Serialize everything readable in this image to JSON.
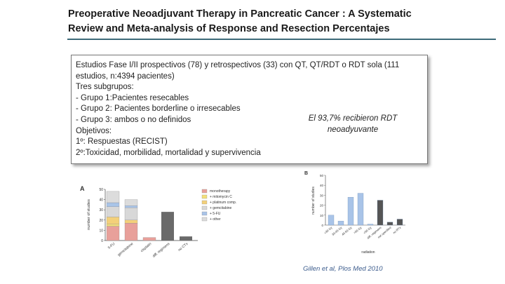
{
  "title_line1": "Preoperative Neoadjuvant Therapy in Pancreatic Cancer : A Systematic",
  "title_line2": "Review and Meta-analysis of Response and Resection Percentajes",
  "box": {
    "line1": "Estudios Fase I/II  prospectivos (78) y retrospectivos (33) con QT, QT/RDT o RDT sola (111",
    "line2": "estudios, n:4394 pacientes)",
    "subgroups_heading": "Tres subgrupos:",
    "groups": [
      "-   Grupo 1:Pacientes resecables",
      "-   Grupo 2: Pacientes borderline o irresecables",
      "-   Grupo 3: ambos o no definidos"
    ],
    "objectives_heading": "Objetivos:",
    "objectives": [
      "1º: Respuestas (RECIST)",
      "2º:Toxicidad, morbilidad, mortalidad y supervivencia"
    ]
  },
  "callout_line1": "El 93,7% recibieron RDT",
  "callout_line2": "neoadyuvante",
  "citation": "Gillen et al, Plos Med 2010",
  "chart_data": [
    {
      "type": "bar",
      "panel_label": "A",
      "ylabel": "number of studies",
      "ylim": [
        0,
        50
      ],
      "yticks": [
        "0",
        "10",
        "20",
        "30",
        "40",
        "50"
      ],
      "categories": [
        "5-FU",
        "gemcitabine",
        "cisplatin",
        "diff. regimens",
        "no CTx"
      ],
      "series": [
        {
          "name": "monotherapy",
          "values": [
            14,
            17,
            3,
            0,
            0
          ]
        },
        {
          "name": "+ mitomycin C",
          "values": [
            2,
            0,
            0,
            0,
            0
          ]
        },
        {
          "name": "+ platinum comp.",
          "values": [
            7,
            3,
            0,
            0,
            0
          ]
        },
        {
          "name": "+ gemcitabine",
          "values": [
            10,
            12,
            0,
            0,
            0
          ]
        },
        {
          "name": "+ 5-FU",
          "values": [
            4,
            2,
            0,
            0,
            0
          ]
        },
        {
          "name": "+ other",
          "values": [
            11,
            6,
            0,
            0,
            0
          ]
        }
      ],
      "totals_bars": [
        {
          "category": "diff. regimens",
          "value": 28
        },
        {
          "category": "no CTx",
          "value": 4
        }
      ],
      "legend_placement": "right",
      "colors": [
        "#e8a09a",
        "#f3e07a",
        "#f3d07a",
        "#d8d8d8",
        "#a9c4e8",
        "#dcdcdc"
      ]
    },
    {
      "type": "bar",
      "panel_label": "B",
      "ylabel": "number of studies",
      "xlabel": "radiation",
      "ylim": [
        0,
        50
      ],
      "yticks": [
        "0",
        "10",
        "20",
        "30",
        "40",
        "50"
      ],
      "categories": [
        "<30 Gy",
        "30-45 Gy",
        "45-50 Gy",
        ">50 Gy",
        "<60 Gy",
        "diff. regimens",
        "not specified",
        "no RTx"
      ],
      "values": [
        10,
        4,
        28,
        32,
        1,
        25,
        3,
        6
      ],
      "colors": [
        "#a9c4e8",
        "#a9c4e8",
        "#a9c4e8",
        "#a9c4e8",
        "#a9c4e8",
        "#555555",
        "#555555",
        "#555555"
      ]
    }
  ]
}
